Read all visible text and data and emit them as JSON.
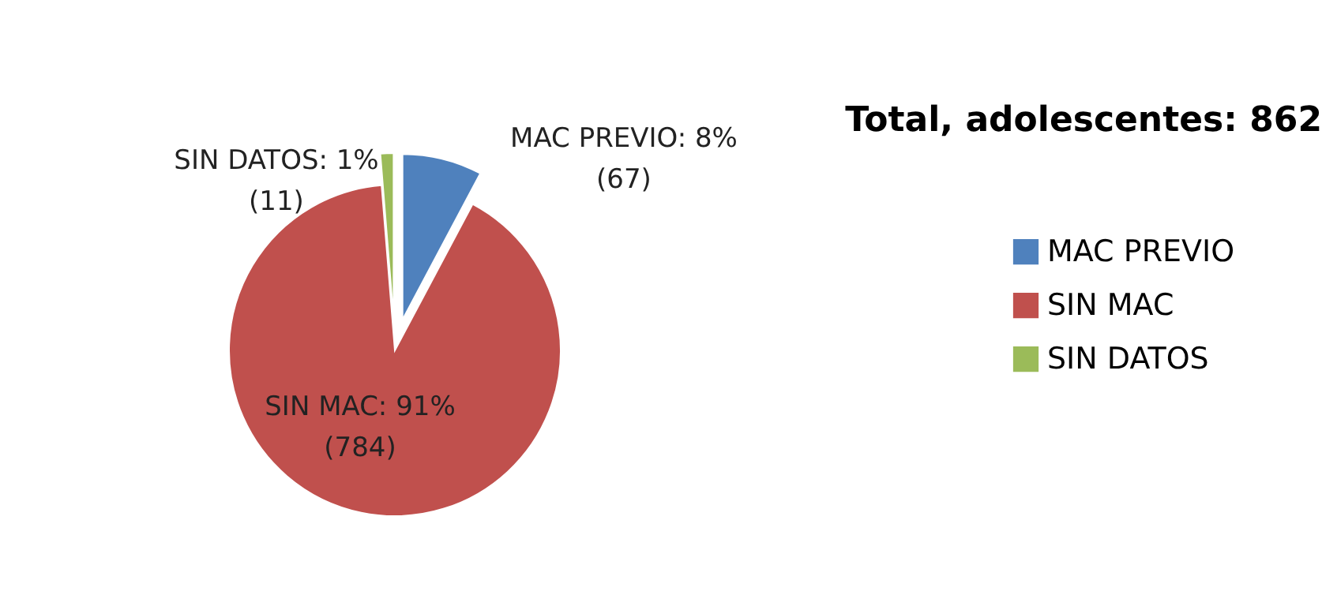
{
  "chart_data": {
    "type": "pie",
    "title": "Total, adolescentes: 862",
    "categories": [
      "MAC PREVIO",
      "SIN MAC",
      "SIN DATOS"
    ],
    "values": [
      67,
      784,
      11
    ],
    "colors": [
      "#4f81bd",
      "#c0504d",
      "#9bbb59"
    ],
    "value_labels": [
      "MAC PREVIO: 8%\n(67)",
      "SIN MAC: 91%\n(784)",
      "SIN DATOS: 1%\n(11)"
    ],
    "legend": "right"
  }
}
